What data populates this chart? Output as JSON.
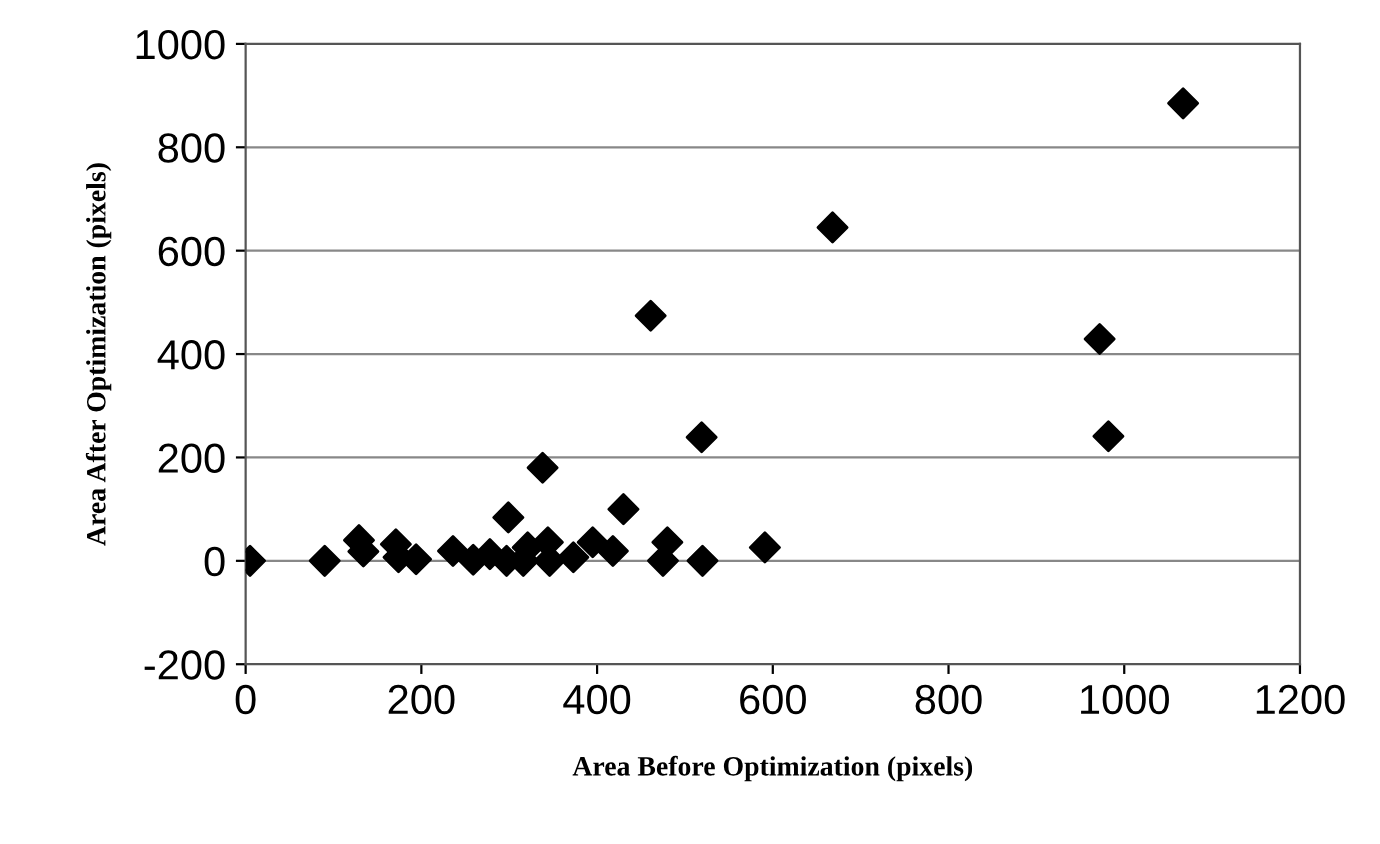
{
  "chart_data": {
    "type": "scatter",
    "xlabel": "Area Before Optimization (pixels)",
    "ylabel": "Area After Optimization (pixels)",
    "x": [
      5,
      90,
      129,
      134,
      171,
      174,
      194,
      236,
      259,
      278,
      297,
      299,
      316,
      321,
      338,
      344,
      346,
      373,
      395,
      418,
      430,
      480,
      475,
      520,
      591,
      668,
      461,
      972,
      519,
      982,
      1067
    ],
    "values": [
      0,
      0,
      40,
      18,
      32,
      7,
      3,
      19,
      2,
      13,
      0,
      84,
      0,
      26,
      180,
      36,
      0,
      7,
      36,
      19,
      100,
      36,
      0,
      0,
      26,
      645,
      474,
      429,
      239,
      241,
      885
    ],
    "color": "#000000",
    "marker": "diamond",
    "xlim": [
      0,
      1200
    ],
    "xticks": [
      0,
      200,
      400,
      600,
      800,
      1000,
      1200
    ],
    "ylim": [
      -200,
      1000
    ],
    "yticks": [
      -200,
      0,
      200,
      400,
      600,
      800,
      1000
    ],
    "grid": "y"
  }
}
